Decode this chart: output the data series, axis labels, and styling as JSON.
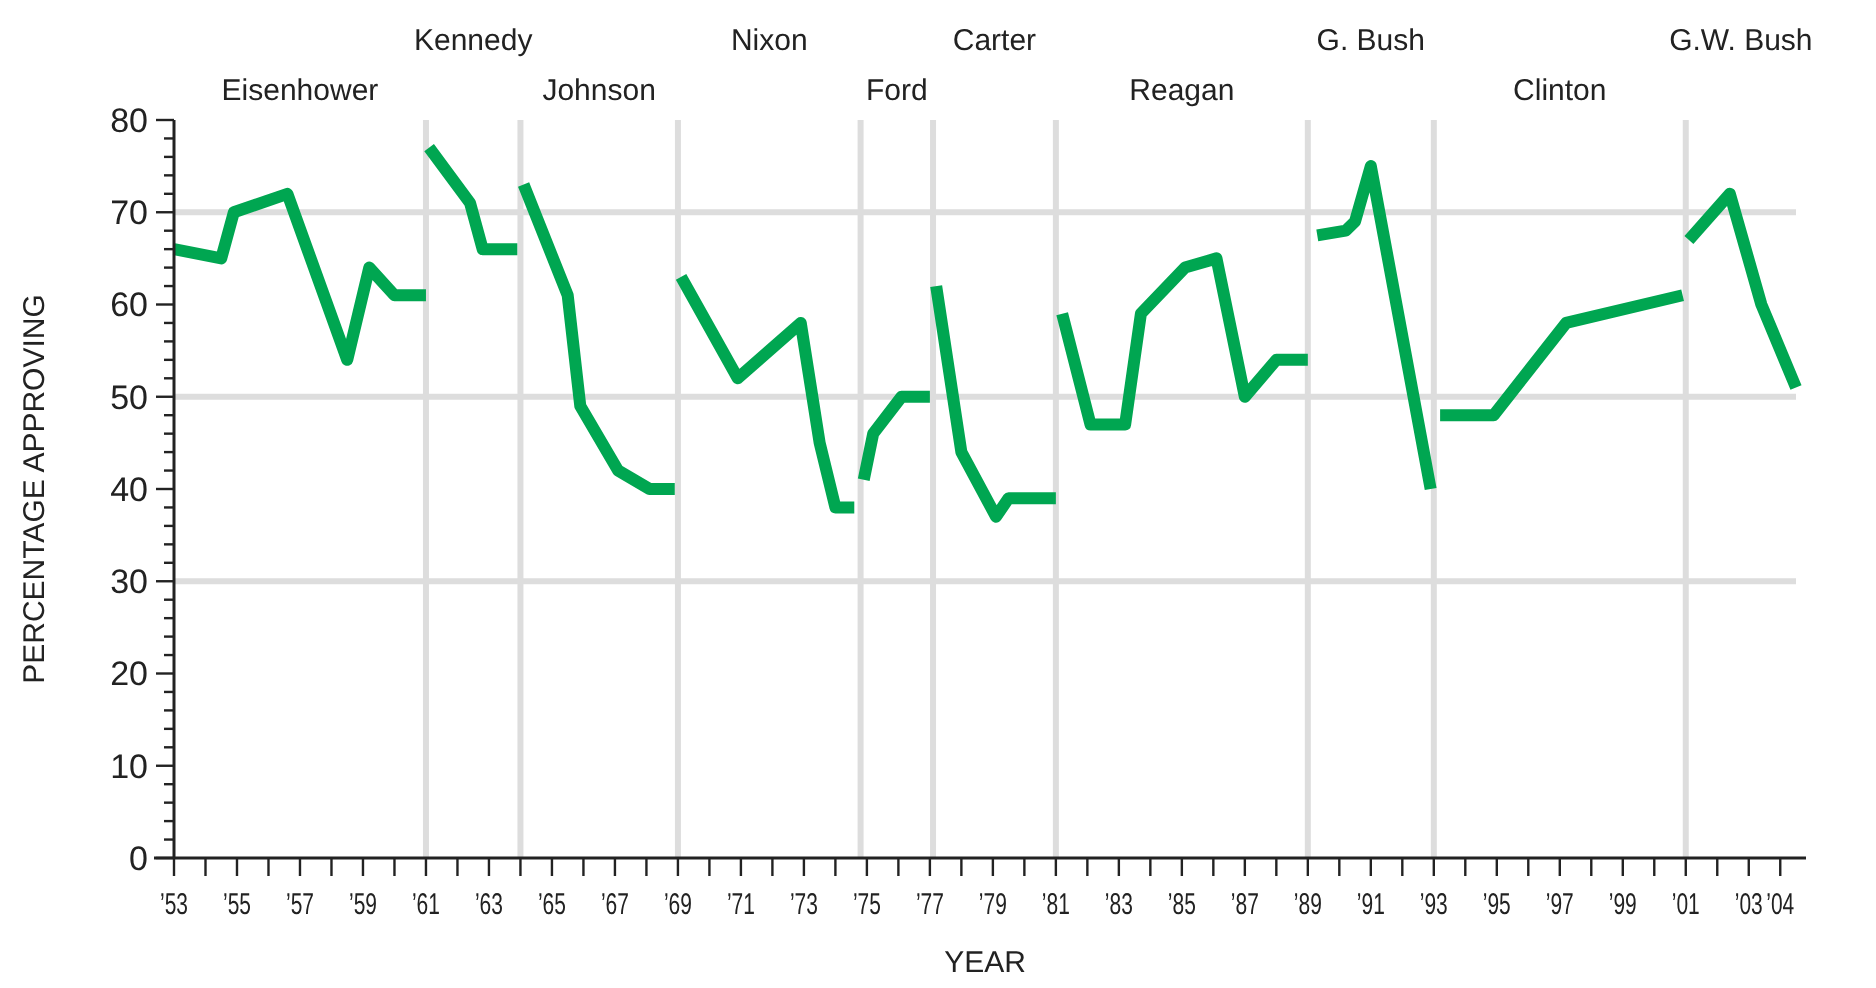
{
  "chart_data": {
    "type": "line",
    "xlabel": "YEAR",
    "ylabel": "PERCENTAGE APPROVING",
    "xlim": [
      1953,
      2004.5
    ],
    "ylim": [
      0,
      80
    ],
    "xticks": [
      {
        "value": 1953,
        "label": "’53"
      },
      {
        "value": 1954,
        "label": null
      },
      {
        "value": 1955,
        "label": "’55"
      },
      {
        "value": 1956,
        "label": null
      },
      {
        "value": 1957,
        "label": "’57"
      },
      {
        "value": 1958,
        "label": null
      },
      {
        "value": 1959,
        "label": "’59"
      },
      {
        "value": 1960,
        "label": null
      },
      {
        "value": 1961,
        "label": "’61"
      },
      {
        "value": 1962,
        "label": null
      },
      {
        "value": 1963,
        "label": "’63"
      },
      {
        "value": 1964,
        "label": null
      },
      {
        "value": 1965,
        "label": "’65"
      },
      {
        "value": 1966,
        "label": null
      },
      {
        "value": 1967,
        "label": "’67"
      },
      {
        "value": 1968,
        "label": null
      },
      {
        "value": 1969,
        "label": "’69"
      },
      {
        "value": 1970,
        "label": null
      },
      {
        "value": 1971,
        "label": "’71"
      },
      {
        "value": 1972,
        "label": null
      },
      {
        "value": 1973,
        "label": "’73"
      },
      {
        "value": 1974,
        "label": null
      },
      {
        "value": 1975,
        "label": "’75"
      },
      {
        "value": 1976,
        "label": null
      },
      {
        "value": 1977,
        "label": "’77"
      },
      {
        "value": 1978,
        "label": null
      },
      {
        "value": 1979,
        "label": "’79"
      },
      {
        "value": 1980,
        "label": null
      },
      {
        "value": 1981,
        "label": "’81"
      },
      {
        "value": 1982,
        "label": null
      },
      {
        "value": 1983,
        "label": "’83"
      },
      {
        "value": 1984,
        "label": null
      },
      {
        "value": 1985,
        "label": "’85"
      },
      {
        "value": 1986,
        "label": null
      },
      {
        "value": 1987,
        "label": "’87"
      },
      {
        "value": 1988,
        "label": null
      },
      {
        "value": 1989,
        "label": "’89"
      },
      {
        "value": 1990,
        "label": null
      },
      {
        "value": 1991,
        "label": "’91"
      },
      {
        "value": 1992,
        "label": null
      },
      {
        "value": 1993,
        "label": "’93"
      },
      {
        "value": 1994,
        "label": null
      },
      {
        "value": 1995,
        "label": "’95"
      },
      {
        "value": 1996,
        "label": null
      },
      {
        "value": 1997,
        "label": "’97"
      },
      {
        "value": 1998,
        "label": null
      },
      {
        "value": 1999,
        "label": "’99"
      },
      {
        "value": 2000,
        "label": null
      },
      {
        "value": 2001,
        "label": "’01"
      },
      {
        "value": 2002,
        "label": null
      },
      {
        "value": 2003,
        "label": "’03"
      },
      {
        "value": 2004,
        "label": "’04"
      }
    ],
    "yticks": [
      0,
      {
        "value": 2,
        "label": null
      },
      {
        "value": 4,
        "label": null
      },
      {
        "value": 6,
        "label": null
      },
      {
        "value": 8,
        "label": null
      },
      10,
      {
        "value": 12,
        "label": null
      },
      {
        "value": 14,
        "label": null
      },
      {
        "value": 16,
        "label": null
      },
      {
        "value": 18,
        "label": null
      },
      20,
      {
        "value": 22,
        "label": null
      },
      {
        "value": 24,
        "label": null
      },
      {
        "value": 26,
        "label": null
      },
      {
        "value": 28,
        "label": null
      },
      30,
      {
        "value": 32,
        "label": null
      },
      {
        "value": 34,
        "label": null
      },
      {
        "value": 36,
        "label": null
      },
      {
        "value": 38,
        "label": null
      },
      40,
      {
        "value": 42,
        "label": null
      },
      {
        "value": 44,
        "label": null
      },
      {
        "value": 46,
        "label": null
      },
      {
        "value": 48,
        "label": null
      },
      50,
      {
        "value": 52,
        "label": null
      },
      {
        "value": 54,
        "label": null
      },
      {
        "value": 56,
        "label": null
      },
      {
        "value": 58,
        "label": null
      },
      60,
      {
        "value": 62,
        "label": null
      },
      {
        "value": 64,
        "label": null
      },
      {
        "value": 66,
        "label": null
      },
      {
        "value": 68,
        "label": null
      },
      70,
      {
        "value": 72,
        "label": null
      },
      {
        "value": 74,
        "label": null
      },
      {
        "value": 76,
        "label": null
      },
      {
        "value": 78,
        "label": null
      },
      80
    ],
    "grid": false,
    "legend": false,
    "marker": "none",
    "line_style": "solid",
    "annotations": [
      "Eisenhower"
    ],
    "ref_lines": [
      {
        "axis": "x",
        "value": 1961,
        "label": "Kennedy",
        "color": "#dddddd"
      },
      {
        "axis": "x",
        "value": 1964,
        "label": "Johnson",
        "color": "#dddddd"
      },
      {
        "axis": "x",
        "value": 1969,
        "label": "Nixon",
        "color": "#dddddd"
      },
      {
        "axis": "x",
        "value": 1974.8,
        "label": "Ford",
        "color": "#dddddd"
      },
      {
        "axis": "x",
        "value": 1977.1,
        "label": "Carter",
        "color": "#dddddd"
      },
      {
        "axis": "x",
        "value": 1981,
        "label": "Reagan",
        "color": "#dddddd"
      },
      {
        "axis": "x",
        "value": 1989,
        "label": "G. Bush",
        "color": "#dddddd"
      },
      {
        "axis": "x",
        "value": 1993,
        "label": "Clinton",
        "color": "#dddddd"
      },
      {
        "axis": "x",
        "value": 2001,
        "label": "G.W. Bush",
        "color": "#dddddd"
      },
      {
        "axis": "y",
        "value": 30,
        "color": "#dddddd"
      },
      {
        "axis": "y",
        "value": 50,
        "color": "#dddddd"
      },
      {
        "axis": "y",
        "value": 70,
        "color": "#dddddd"
      }
    ],
    "series": [
      {
        "color": "#00a651",
        "x": [
          1953,
          1954.5,
          1954.9,
          1956.6,
          1958.5,
          1959.2,
          1960,
          1961
        ],
        "values": [
          66,
          65,
          70,
          72,
          54,
          64,
          61,
          61
        ]
      },
      {
        "color": "#00a651",
        "x": [
          1961.1,
          1962.4,
          1962.8,
          1963.9
        ],
        "values": [
          77,
          71,
          66,
          66
        ]
      },
      {
        "color": "#00a651",
        "x": [
          1964.1,
          1965.5,
          1965.9,
          1967.1,
          1968.1,
          1968.9
        ],
        "values": [
          73,
          61,
          49,
          42,
          40,
          40
        ]
      },
      {
        "color": "#00a651",
        "x": [
          1969.1,
          1970.9,
          1972.9,
          1973.5,
          1974,
          1974.6
        ],
        "values": [
          63,
          52,
          58,
          45,
          38,
          38
        ]
      },
      {
        "color": "#00a651",
        "x": [
          1974.9,
          1975.2,
          1976.1,
          1977
        ],
        "values": [
          41,
          46,
          50,
          50
        ]
      },
      {
        "color": "#00a651",
        "x": [
          1977.2,
          1978,
          1979.1,
          1979.5,
          1981
        ],
        "values": [
          62,
          44,
          37,
          39,
          39
        ]
      },
      {
        "color": "#00a651",
        "x": [
          1981.2,
          1982.1,
          1983.2,
          1983.7,
          1985.1,
          1986.1,
          1987,
          1988,
          1989
        ],
        "values": [
          59,
          47,
          47,
          59,
          64,
          65,
          50,
          54,
          54
        ]
      },
      {
        "color": "#00a651",
        "x": [
          1989.3,
          1990.2,
          1990.5,
          1991,
          1992.9
        ],
        "values": [
          67.5,
          68,
          69,
          75,
          40
        ]
      },
      {
        "color": "#00a651",
        "x": [
          1993.2,
          1994.9,
          1997.2,
          2000.9
        ],
        "values": [
          48,
          48,
          58,
          61
        ]
      },
      {
        "color": "#00a651",
        "x": [
          2001.1,
          2002.4,
          2003.4,
          2004.5
        ],
        "values": [
          67,
          72,
          60,
          51
        ]
      }
    ]
  }
}
